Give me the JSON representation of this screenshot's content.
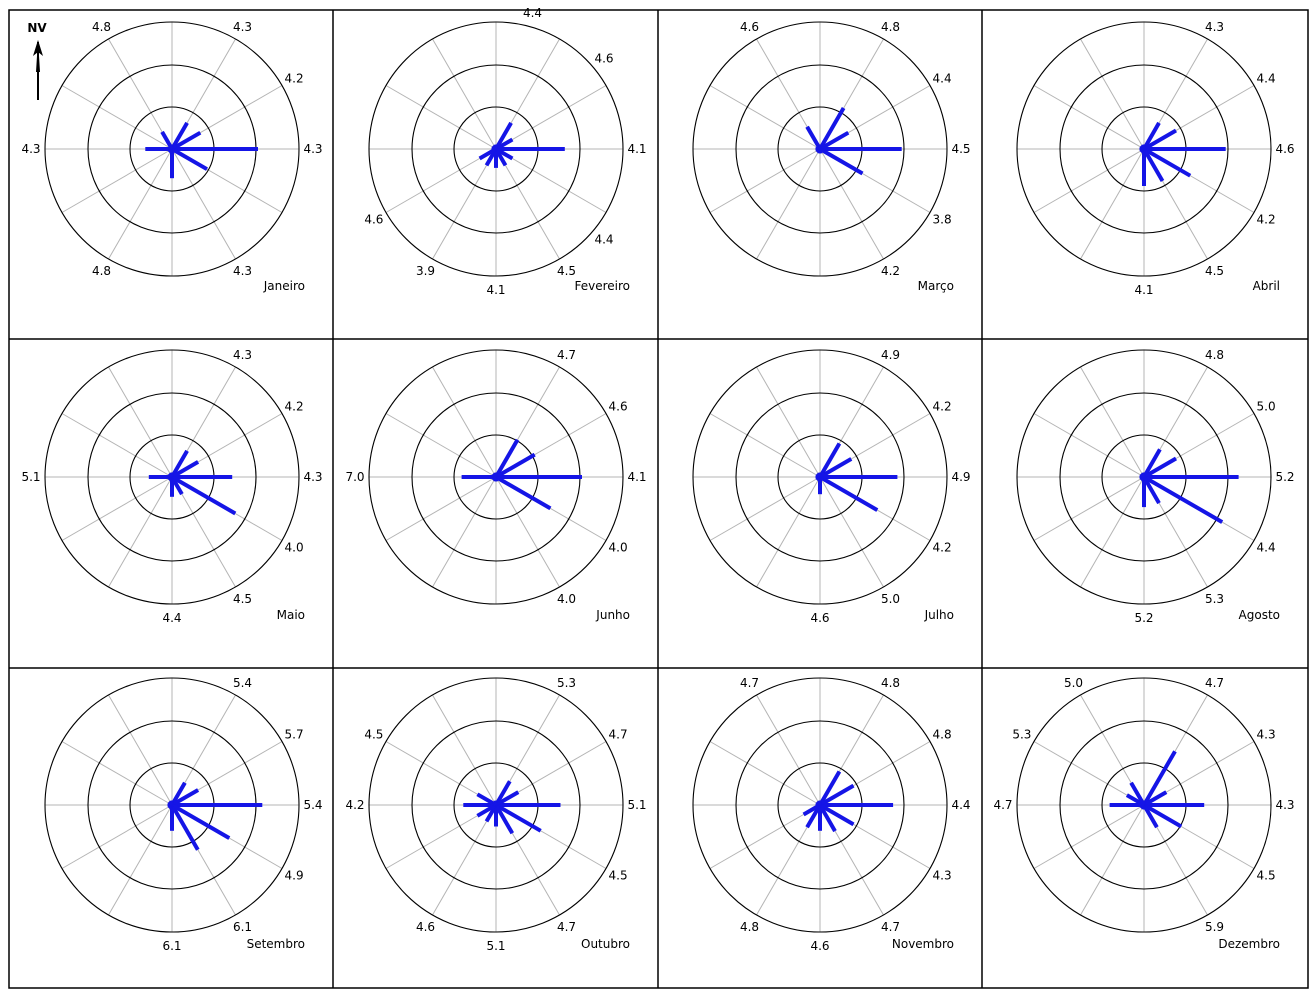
{
  "north_label": "NV",
  "chart_data": [
    {
      "type": "radar",
      "month": "Janeiro",
      "dirs": [
        0,
        30,
        60,
        90,
        120,
        150,
        180,
        210,
        240,
        270,
        300,
        330
      ],
      "lengths": [
        0.05,
        0.35,
        0.38,
        1.0,
        0.47,
        0.05,
        0.34,
        0.05,
        0.05,
        0.31,
        0.05,
        0.23
      ],
      "speed_labels": [
        "4.3",
        "4.2",
        "4.3",
        "4.3",
        "",
        "4.8",
        "",
        "",
        "4.3",
        "",
        "4.8"
      ]
    },
    {
      "type": "radar",
      "month": "Fevereiro",
      "dirs": [
        0,
        30,
        60,
        90,
        120,
        150,
        180,
        210,
        240,
        270,
        300,
        330
      ],
      "lengths": [
        0.05,
        0.35,
        0.22,
        0.8,
        0.22,
        0.22,
        0.22,
        0.22,
        0.22,
        0.05,
        0.05,
        0.05
      ],
      "speed_labels": [
        "4.4",
        "4.6",
        "4.1",
        "4.4",
        "4.5",
        "4.1",
        "3.9",
        "4.6",
        "",
        "",
        ""
      ]
    },
    {
      "type": "radar",
      "month": "Março",
      "dirs": [
        0,
        30,
        60,
        90,
        120,
        150,
        180,
        210,
        240,
        270,
        300,
        330
      ],
      "lengths": [
        0.05,
        0.55,
        0.38,
        0.95,
        0.57,
        0.05,
        0.05,
        0.05,
        0.05,
        0.05,
        0.05,
        0.3
      ],
      "speed_labels": [
        "4.8",
        "4.4",
        "4.5",
        "3.8",
        "4.2",
        "",
        "",
        "",
        "",
        "4.6",
        ""
      ]
    },
    {
      "type": "radar",
      "month": "Abril",
      "dirs": [
        0,
        30,
        60,
        90,
        120,
        150,
        180,
        210,
        240,
        270,
        300,
        330
      ],
      "lengths": [
        0.05,
        0.35,
        0.43,
        0.95,
        0.62,
        0.43,
        0.43,
        0.05,
        0.05,
        0.05,
        0.05,
        0.05
      ],
      "speed_labels": [
        "4.3",
        "4.4",
        "4.6",
        "4.2",
        "4.5",
        "4.1",
        "",
        "",
        "",
        "",
        ""
      ]
    },
    {
      "type": "radar",
      "month": "Maio",
      "dirs": [
        0,
        30,
        60,
        90,
        120,
        150,
        180,
        210,
        240,
        270,
        300,
        330
      ],
      "lengths": [
        0.05,
        0.35,
        0.35,
        0.7,
        0.85,
        0.23,
        0.23,
        0.05,
        0.05,
        0.27,
        0.05,
        0.05
      ],
      "speed_labels": [
        "4.3",
        "4.2",
        "4.3",
        "4.0",
        "4.5",
        "4.4",
        "",
        "",
        "5.1",
        "",
        ""
      ]
    },
    {
      "type": "radar",
      "month": "Junho",
      "dirs": [
        0,
        30,
        60,
        90,
        120,
        150,
        180,
        210,
        240,
        270,
        300,
        330
      ],
      "lengths": [
        0.05,
        0.5,
        0.52,
        1.0,
        0.73,
        0.05,
        0.05,
        0.05,
        0.05,
        0.4,
        0.05,
        0.05
      ],
      "speed_labels": [
        "4.7",
        "4.6",
        "4.1",
        "4.0",
        "4.0",
        "",
        "",
        "",
        "7.0",
        "",
        ""
      ]
    },
    {
      "type": "radar",
      "month": "Julho",
      "dirs": [
        0,
        30,
        60,
        90,
        120,
        150,
        180,
        210,
        240,
        270,
        300,
        330
      ],
      "lengths": [
        0.05,
        0.45,
        0.42,
        0.9,
        0.77,
        0.05,
        0.2,
        0.05,
        0.05,
        0.05,
        0.05,
        0.05
      ],
      "speed_labels": [
        "4.9",
        "4.2",
        "4.9",
        "4.2",
        "5.0",
        "4.6",
        "",
        "",
        "",
        "",
        ""
      ]
    },
    {
      "type": "radar",
      "month": "Agosto",
      "dirs": [
        0,
        30,
        60,
        90,
        120,
        150,
        180,
        210,
        240,
        270,
        300,
        330
      ],
      "lengths": [
        0.05,
        0.37,
        0.43,
        1.1,
        1.05,
        0.35,
        0.35,
        0.05,
        0.05,
        0.05,
        0.05,
        0.05
      ],
      "speed_labels": [
        "4.8",
        "5.0",
        "5.2",
        "4.4",
        "5.3",
        "5.2",
        "",
        "",
        "",
        "",
        ""
      ]
    },
    {
      "type": "radar",
      "month": "Setembro",
      "dirs": [
        0,
        30,
        60,
        90,
        120,
        150,
        180,
        210,
        240,
        270,
        300,
        330
      ],
      "lengths": [
        0.05,
        0.3,
        0.35,
        1.05,
        0.77,
        0.6,
        0.3,
        0.05,
        0.05,
        0.05,
        0.05,
        0.05
      ],
      "speed_labels": [
        "5.4",
        "5.7",
        "5.4",
        "4.9",
        "6.1",
        "6.1",
        "",
        "",
        "",
        "",
        ""
      ]
    },
    {
      "type": "radar",
      "month": "Outubro",
      "dirs": [
        0,
        30,
        60,
        90,
        120,
        150,
        180,
        210,
        240,
        270,
        300,
        330
      ],
      "lengths": [
        0.05,
        0.32,
        0.3,
        0.75,
        0.6,
        0.38,
        0.25,
        0.22,
        0.25,
        0.38,
        0.25,
        0.05
      ],
      "speed_labels": [
        "5.3",
        "4.7",
        "5.1",
        "4.5",
        "4.7",
        "5.1",
        "4.6",
        "4.2",
        "4.5",
        "",
        ""
      ]
    },
    {
      "type": "radar",
      "month": "Novembro",
      "dirs": [
        0,
        30,
        60,
        90,
        120,
        150,
        180,
        210,
        240,
        270,
        300,
        330
      ],
      "lengths": [
        0.05,
        0.45,
        0.45,
        0.85,
        0.45,
        0.35,
        0.3,
        0.3,
        0.22,
        0.05,
        0.05,
        0.05
      ],
      "speed_labels": [
        "4.8",
        "4.8",
        "4.4",
        "4.3",
        "4.7",
        "4.6",
        "4.8",
        "",
        "",
        "4.7",
        ""
      ]
    },
    {
      "type": "radar",
      "month": "Dezembro",
      "dirs": [
        0,
        30,
        60,
        90,
        120,
        150,
        180,
        210,
        240,
        270,
        300,
        330
      ],
      "lengths": [
        0.05,
        0.72,
        0.3,
        0.7,
        0.5,
        0.3,
        0.05,
        0.05,
        0.05,
        0.4,
        0.23,
        0.3
      ],
      "speed_labels": [
        "4.7",
        "4.3",
        "4.3",
        "4.5",
        "5.9",
        "",
        "",
        "",
        "4.7",
        "5.3",
        "5.0"
      ]
    }
  ]
}
